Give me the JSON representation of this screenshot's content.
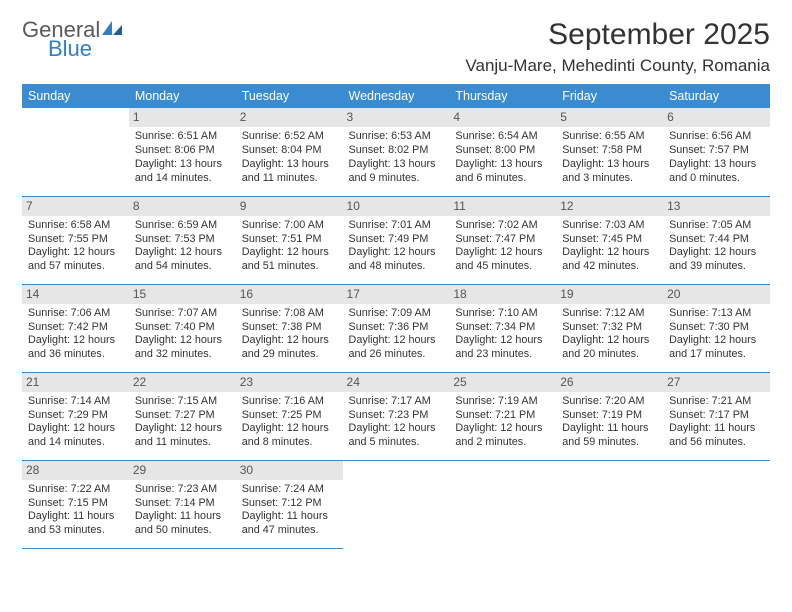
{
  "brand": {
    "general": "General",
    "blue": "Blue"
  },
  "title": "September 2025",
  "location": "Vanju-Mare, Mehedinti County, Romania",
  "colors": {
    "header_bg": "#3b8bd0",
    "header_text": "#ffffff",
    "daynum_bg": "#e6e6e6",
    "daynum_text": "#555555",
    "cell_text": "#333333",
    "rule": "#3b8bd0",
    "logo_gray": "#5a5a5a",
    "logo_blue": "#2f7fc2",
    "page_bg": "#ffffff"
  },
  "typography": {
    "title_fontsize": 30,
    "location_fontsize": 17,
    "header_fontsize": 12.5,
    "cell_fontsize": 10.8,
    "daynum_fontsize": 12
  },
  "day_headers": [
    "Sunday",
    "Monday",
    "Tuesday",
    "Wednesday",
    "Thursday",
    "Friday",
    "Saturday"
  ],
  "weeks": [
    [
      null,
      {
        "n": "1",
        "sunrise": "Sunrise: 6:51 AM",
        "sunset": "Sunset: 8:06 PM",
        "daylight": "Daylight: 13 hours and 14 minutes."
      },
      {
        "n": "2",
        "sunrise": "Sunrise: 6:52 AM",
        "sunset": "Sunset: 8:04 PM",
        "daylight": "Daylight: 13 hours and 11 minutes."
      },
      {
        "n": "3",
        "sunrise": "Sunrise: 6:53 AM",
        "sunset": "Sunset: 8:02 PM",
        "daylight": "Daylight: 13 hours and 9 minutes."
      },
      {
        "n": "4",
        "sunrise": "Sunrise: 6:54 AM",
        "sunset": "Sunset: 8:00 PM",
        "daylight": "Daylight: 13 hours and 6 minutes."
      },
      {
        "n": "5",
        "sunrise": "Sunrise: 6:55 AM",
        "sunset": "Sunset: 7:58 PM",
        "daylight": "Daylight: 13 hours and 3 minutes."
      },
      {
        "n": "6",
        "sunrise": "Sunrise: 6:56 AM",
        "sunset": "Sunset: 7:57 PM",
        "daylight": "Daylight: 13 hours and 0 minutes."
      }
    ],
    [
      {
        "n": "7",
        "sunrise": "Sunrise: 6:58 AM",
        "sunset": "Sunset: 7:55 PM",
        "daylight": "Daylight: 12 hours and 57 minutes."
      },
      {
        "n": "8",
        "sunrise": "Sunrise: 6:59 AM",
        "sunset": "Sunset: 7:53 PM",
        "daylight": "Daylight: 12 hours and 54 minutes."
      },
      {
        "n": "9",
        "sunrise": "Sunrise: 7:00 AM",
        "sunset": "Sunset: 7:51 PM",
        "daylight": "Daylight: 12 hours and 51 minutes."
      },
      {
        "n": "10",
        "sunrise": "Sunrise: 7:01 AM",
        "sunset": "Sunset: 7:49 PM",
        "daylight": "Daylight: 12 hours and 48 minutes."
      },
      {
        "n": "11",
        "sunrise": "Sunrise: 7:02 AM",
        "sunset": "Sunset: 7:47 PM",
        "daylight": "Daylight: 12 hours and 45 minutes."
      },
      {
        "n": "12",
        "sunrise": "Sunrise: 7:03 AM",
        "sunset": "Sunset: 7:45 PM",
        "daylight": "Daylight: 12 hours and 42 minutes."
      },
      {
        "n": "13",
        "sunrise": "Sunrise: 7:05 AM",
        "sunset": "Sunset: 7:44 PM",
        "daylight": "Daylight: 12 hours and 39 minutes."
      }
    ],
    [
      {
        "n": "14",
        "sunrise": "Sunrise: 7:06 AM",
        "sunset": "Sunset: 7:42 PM",
        "daylight": "Daylight: 12 hours and 36 minutes."
      },
      {
        "n": "15",
        "sunrise": "Sunrise: 7:07 AM",
        "sunset": "Sunset: 7:40 PM",
        "daylight": "Daylight: 12 hours and 32 minutes."
      },
      {
        "n": "16",
        "sunrise": "Sunrise: 7:08 AM",
        "sunset": "Sunset: 7:38 PM",
        "daylight": "Daylight: 12 hours and 29 minutes."
      },
      {
        "n": "17",
        "sunrise": "Sunrise: 7:09 AM",
        "sunset": "Sunset: 7:36 PM",
        "daylight": "Daylight: 12 hours and 26 minutes."
      },
      {
        "n": "18",
        "sunrise": "Sunrise: 7:10 AM",
        "sunset": "Sunset: 7:34 PM",
        "daylight": "Daylight: 12 hours and 23 minutes."
      },
      {
        "n": "19",
        "sunrise": "Sunrise: 7:12 AM",
        "sunset": "Sunset: 7:32 PM",
        "daylight": "Daylight: 12 hours and 20 minutes."
      },
      {
        "n": "20",
        "sunrise": "Sunrise: 7:13 AM",
        "sunset": "Sunset: 7:30 PM",
        "daylight": "Daylight: 12 hours and 17 minutes."
      }
    ],
    [
      {
        "n": "21",
        "sunrise": "Sunrise: 7:14 AM",
        "sunset": "Sunset: 7:29 PM",
        "daylight": "Daylight: 12 hours and 14 minutes."
      },
      {
        "n": "22",
        "sunrise": "Sunrise: 7:15 AM",
        "sunset": "Sunset: 7:27 PM",
        "daylight": "Daylight: 12 hours and 11 minutes."
      },
      {
        "n": "23",
        "sunrise": "Sunrise: 7:16 AM",
        "sunset": "Sunset: 7:25 PM",
        "daylight": "Daylight: 12 hours and 8 minutes."
      },
      {
        "n": "24",
        "sunrise": "Sunrise: 7:17 AM",
        "sunset": "Sunset: 7:23 PM",
        "daylight": "Daylight: 12 hours and 5 minutes."
      },
      {
        "n": "25",
        "sunrise": "Sunrise: 7:19 AM",
        "sunset": "Sunset: 7:21 PM",
        "daylight": "Daylight: 12 hours and 2 minutes."
      },
      {
        "n": "26",
        "sunrise": "Sunrise: 7:20 AM",
        "sunset": "Sunset: 7:19 PM",
        "daylight": "Daylight: 11 hours and 59 minutes."
      },
      {
        "n": "27",
        "sunrise": "Sunrise: 7:21 AM",
        "sunset": "Sunset: 7:17 PM",
        "daylight": "Daylight: 11 hours and 56 minutes."
      }
    ],
    [
      {
        "n": "28",
        "sunrise": "Sunrise: 7:22 AM",
        "sunset": "Sunset: 7:15 PM",
        "daylight": "Daylight: 11 hours and 53 minutes."
      },
      {
        "n": "29",
        "sunrise": "Sunrise: 7:23 AM",
        "sunset": "Sunset: 7:14 PM",
        "daylight": "Daylight: 11 hours and 50 minutes."
      },
      {
        "n": "30",
        "sunrise": "Sunrise: 7:24 AM",
        "sunset": "Sunset: 7:12 PM",
        "daylight": "Daylight: 11 hours and 47 minutes."
      },
      null,
      null,
      null,
      null
    ]
  ]
}
